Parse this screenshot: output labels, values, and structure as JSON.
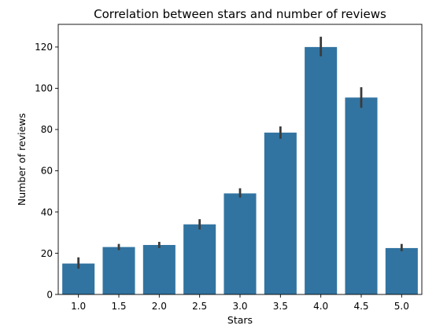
{
  "chart_data": {
    "type": "bar",
    "title": "Correlation between stars and number of reviews",
    "xlabel": "Stars",
    "ylabel": "Number of reviews",
    "categories": [
      "1.0",
      "1.5",
      "2.0",
      "2.5",
      "3.0",
      "3.5",
      "4.0",
      "4.5",
      "5.0"
    ],
    "values": [
      15,
      23,
      24,
      34,
      49,
      78.5,
      120,
      95.5,
      22.5
    ],
    "error_low": [
      12.5,
      21.5,
      22.5,
      31.5,
      47,
      75.5,
      115.5,
      90.5,
      21
    ],
    "error_high": [
      18,
      24.5,
      25.5,
      36.5,
      51.5,
      81.5,
      125,
      100.5,
      24.5
    ],
    "yticks": [
      0,
      20,
      40,
      60,
      80,
      100,
      120
    ],
    "ylim": [
      0,
      131
    ],
    "grid": false,
    "colors": {
      "bar": "#3274a1",
      "error_bar": "#3b3b3b"
    }
  }
}
